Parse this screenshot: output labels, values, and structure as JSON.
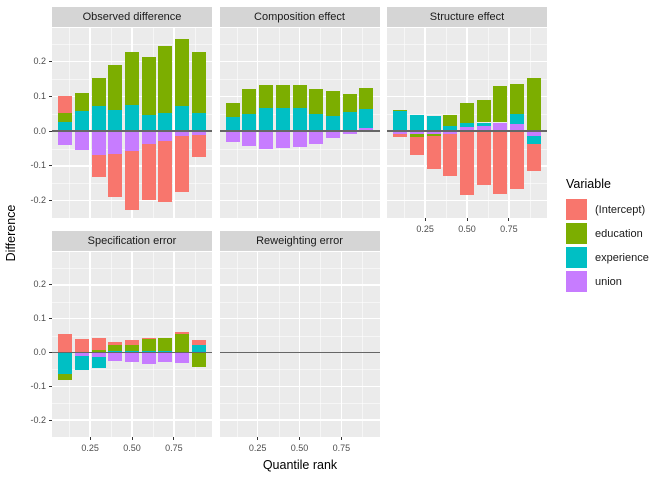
{
  "colors": {
    "(Intercept)": "#F8766D",
    "education": "#7CAE00",
    "experience": "#00BFC4",
    "union": "#C77CFF",
    "panel_bg": "#EBEBEB",
    "strip_bg": "#D5D5D5",
    "grid": "#FFFFFF",
    "zero_line": "#666666",
    "tick_text": "#4D4D4D"
  },
  "axes": {
    "y_title": "Difference",
    "x_title": "Quantile rank",
    "y_tick_labels": [
      "0.2",
      "0.1",
      "0.0",
      "-0.1",
      "-0.2"
    ],
    "y_tick_values": [
      0.2,
      0.1,
      0.0,
      -0.1,
      -0.2
    ],
    "x_tick_labels": [
      "0.25",
      "0.50",
      "0.75"
    ],
    "x_tick_values": [
      0.25,
      0.5,
      0.75
    ]
  },
  "legend": {
    "title": "Variable",
    "entries": [
      {
        "label": "(Intercept)",
        "color": "#F8766D"
      },
      {
        "label": "education",
        "color": "#7CAE00"
      },
      {
        "label": "experience",
        "color": "#00BFC4"
      },
      {
        "label": "union",
        "color": "#C77CFF"
      }
    ]
  },
  "chart_data": {
    "type": "bar",
    "stacked": true,
    "x": [
      0.1,
      0.2,
      0.3,
      0.4,
      0.5,
      0.6,
      0.7,
      0.8,
      0.9
    ],
    "xlabel": "Quantile rank",
    "ylabel": "Difference",
    "ylim": [
      -0.25,
      0.3
    ],
    "xlim": [
      0.02,
      0.98
    ],
    "grid": {
      "major_y": [
        -0.2,
        -0.1,
        0.0,
        0.1,
        0.2,
        0.3
      ],
      "minor_y": [
        -0.25,
        -0.15,
        -0.05,
        0.05,
        0.15,
        0.25
      ],
      "major_x": [
        0.25,
        0.5,
        0.75
      ],
      "minor_x": [
        0.125,
        0.375,
        0.625,
        0.875
      ]
    },
    "legend_position": "right",
    "stack_order": [
      "union",
      "experience",
      "education",
      "(Intercept)"
    ],
    "series_names": [
      "(Intercept)",
      "education",
      "experience",
      "union"
    ],
    "facets": [
      {
        "title": "Observed difference",
        "row": 0,
        "col": 0,
        "show_x": false,
        "series": {
          "(Intercept)": [
            0.05,
            0,
            -0.063,
            -0.124,
            -0.168,
            -0.161,
            -0.177,
            -0.16,
            -0.065
          ],
          "education": [
            0.026,
            0.052,
            0.081,
            0.13,
            0.153,
            0.169,
            0.194,
            0.194,
            0.176
          ],
          "experience": [
            0.026,
            0.057,
            0.072,
            0.06,
            0.076,
            0.046,
            0.051,
            0.072,
            0.053
          ],
          "union": [
            -0.041,
            -0.055,
            -0.068,
            -0.065,
            -0.058,
            -0.036,
            -0.027,
            -0.015,
            -0.01
          ]
        }
      },
      {
        "title": "Composition effect",
        "row": 0,
        "col": 1,
        "show_x": false,
        "series": {
          "(Intercept)": [
            0,
            0,
            0,
            0,
            0,
            0,
            0,
            0,
            0
          ],
          "education": [
            0.04,
            0.072,
            0.066,
            0.066,
            0.064,
            0.071,
            0.073,
            0.05,
            0.061
          ],
          "experience": [
            0.042,
            0.05,
            0.066,
            0.066,
            0.068,
            0.05,
            0.043,
            0.056,
            0.053
          ],
          "union": [
            -0.031,
            -0.043,
            -0.05,
            -0.048,
            -0.046,
            -0.037,
            -0.021,
            -0.008,
            0.01
          ]
        }
      },
      {
        "title": "Structure effect",
        "row": 0,
        "col": 2,
        "show_x": true,
        "series": {
          "(Intercept)": [
            -0.009,
            -0.05,
            -0.094,
            -0.121,
            -0.185,
            -0.156,
            -0.182,
            -0.167,
            -0.078
          ],
          "education": [
            0.004,
            -0.009,
            -0.006,
            0.033,
            0.059,
            0.064,
            0.104,
            0.088,
            0.152
          ],
          "experience": [
            0.057,
            0.048,
            0.045,
            0.015,
            0.011,
            0.01,
            0,
            0.029,
            -0.024
          ],
          "union": [
            -0.009,
            -0.009,
            -0.009,
            -0.008,
            0.012,
            0.015,
            0.025,
            0.02,
            -0.014
          ]
        }
      },
      {
        "title": "Specification error",
        "row": 1,
        "col": 0,
        "show_x": true,
        "series": {
          "(Intercept)": [
            0.054,
            0.04,
            0.034,
            0.007,
            0.015,
            0.003,
            0,
            0.006,
            0.017
          ],
          "education": [
            -0.017,
            0,
            0.008,
            0.019,
            0.018,
            0.035,
            0.04,
            0.054,
            -0.042
          ],
          "experience": [
            -0.064,
            -0.041,
            -0.033,
            0.004,
            0.004,
            0.004,
            0.004,
            0,
            0.021
          ],
          "union": [
            0,
            -0.011,
            -0.013,
            -0.026,
            -0.028,
            -0.033,
            -0.029,
            -0.031,
            0
          ]
        }
      },
      {
        "title": "Reweighting error",
        "row": 1,
        "col": 1,
        "show_x": true,
        "series": {
          "(Intercept)": [
            0,
            0,
            0,
            0,
            0,
            0,
            0,
            0,
            0
          ],
          "education": [
            0,
            0,
            0,
            0,
            0,
            0,
            0,
            0,
            0
          ],
          "experience": [
            0,
            0,
            0,
            0,
            0,
            0,
            0,
            0,
            0
          ],
          "union": [
            0,
            0,
            0,
            0,
            0,
            0,
            0,
            0,
            0
          ]
        }
      }
    ]
  }
}
